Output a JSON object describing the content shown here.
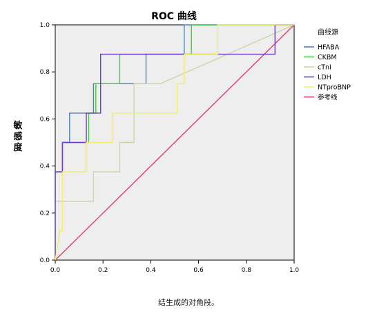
{
  "chart_data": {
    "type": "line",
    "title": "ROC 曲线",
    "xlabel": "",
    "ylabel": "敏感度",
    "xlim": [
      0,
      1
    ],
    "ylim": [
      0,
      1
    ],
    "x_ticks": [
      "0.0",
      "0.2",
      "0.4",
      "0.6",
      "0.8",
      "1.0"
    ],
    "y_ticks": [
      "0.0",
      "0.2",
      "0.4",
      "0.6",
      "0.8",
      "1.0"
    ],
    "grid": false,
    "legend_title": "曲线源",
    "legend_position": "right",
    "series": [
      {
        "name": "HFABA",
        "color": "#4e7fc2",
        "points": [
          [
            0,
            0
          ],
          [
            0,
            0.375
          ],
          [
            0.03,
            0.375
          ],
          [
            0.03,
            0.5
          ],
          [
            0.06,
            0.5
          ],
          [
            0.06,
            0.625
          ],
          [
            0.16,
            0.625
          ],
          [
            0.16,
            0.75
          ],
          [
            0.28,
            0.75
          ],
          [
            0.28,
            0.75
          ],
          [
            0.38,
            0.75
          ],
          [
            0.38,
            0.875
          ],
          [
            0.49,
            0.875
          ],
          [
            0.49,
            0.875
          ],
          [
            0.54,
            0.875
          ],
          [
            0.54,
            1
          ],
          [
            1,
            1
          ]
        ]
      },
      {
        "name": "CKBM",
        "color": "#3ecf3e",
        "points": [
          [
            0,
            0
          ],
          [
            0,
            0.375
          ],
          [
            0.03,
            0.375
          ],
          [
            0.03,
            0.5
          ],
          [
            0.14,
            0.5
          ],
          [
            0.14,
            0.625
          ],
          [
            0.17,
            0.625
          ],
          [
            0.17,
            0.75
          ],
          [
            0.27,
            0.75
          ],
          [
            0.27,
            0.875
          ],
          [
            0.57,
            0.875
          ],
          [
            0.57,
            1
          ],
          [
            1,
            1
          ]
        ]
      },
      {
        "name": "cTnI",
        "color": "#c9d7a4",
        "points": [
          [
            0,
            0
          ],
          [
            0,
            0.25
          ],
          [
            0.16,
            0.25
          ],
          [
            0.16,
            0.375
          ],
          [
            0.27,
            0.375
          ],
          [
            0.27,
            0.5
          ],
          [
            0.33,
            0.5
          ],
          [
            0.33,
            0.75
          ],
          [
            0.44,
            0.75
          ],
          [
            1,
            1
          ]
        ]
      },
      {
        "name": "LDH",
        "color": "#6a3fc7",
        "points": [
          [
            0,
            0
          ],
          [
            0,
            0.375
          ],
          [
            0.03,
            0.375
          ],
          [
            0.03,
            0.5
          ],
          [
            0.13,
            0.5
          ],
          [
            0.13,
            0.625
          ],
          [
            0.19,
            0.625
          ],
          [
            0.19,
            0.875
          ],
          [
            0.92,
            0.875
          ],
          [
            0.92,
            1
          ],
          [
            1,
            1
          ]
        ]
      },
      {
        "name": "NTproBNP",
        "color": "#f2ee6a",
        "points": [
          [
            0,
            0
          ],
          [
            0.02,
            0.125
          ],
          [
            0.03,
            0.125
          ],
          [
            0.03,
            0.375
          ],
          [
            0.13,
            0.375
          ],
          [
            0.13,
            0.5
          ],
          [
            0.24,
            0.5
          ],
          [
            0.24,
            0.625
          ],
          [
            0.51,
            0.625
          ],
          [
            0.51,
            0.75
          ],
          [
            0.54,
            0.75
          ],
          [
            0.54,
            0.875
          ],
          [
            0.68,
            0.875
          ],
          [
            0.68,
            1
          ],
          [
            1,
            1
          ]
        ]
      },
      {
        "name": "参考线",
        "color": "#e23a6a",
        "points": [
          [
            0,
            0
          ],
          [
            1,
            1
          ]
        ]
      }
    ]
  },
  "caption": "结生成的对角段。"
}
